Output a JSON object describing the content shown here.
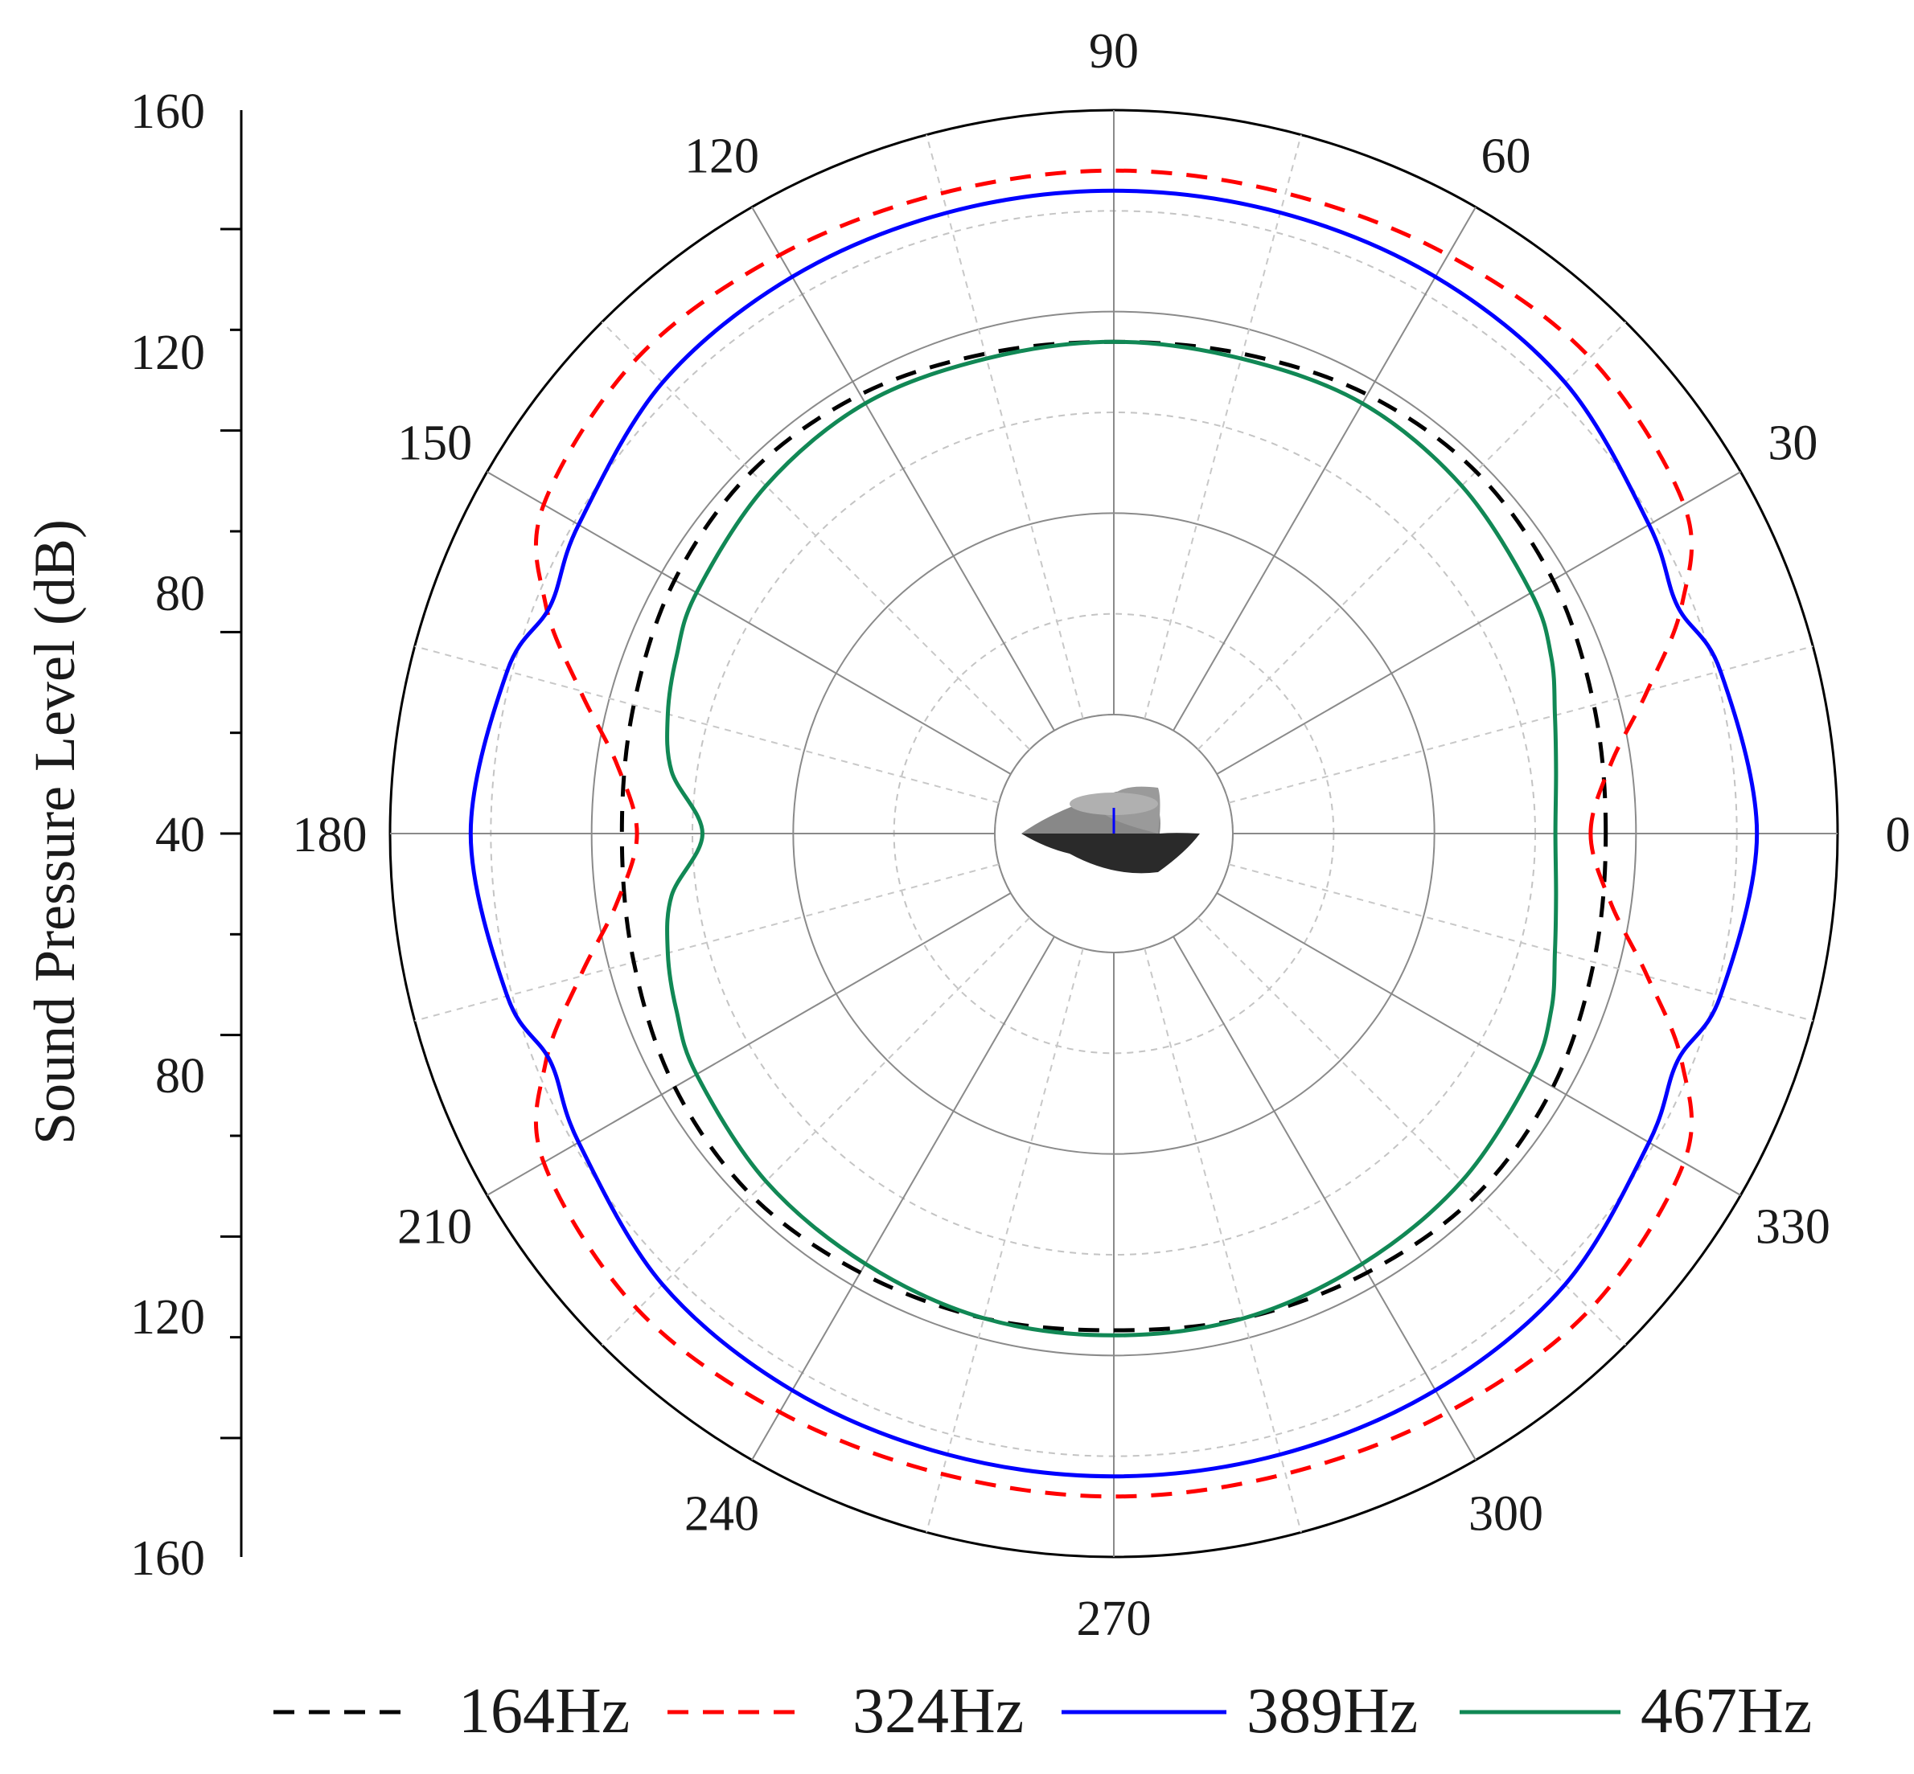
{
  "chart_data": {
    "type": "polar-line",
    "title": "",
    "ylabel": "Sound Pressure Level (dB)",
    "radial_range": [
      40,
      160
    ],
    "radial_ticks": [
      40,
      80,
      120,
      160
    ],
    "radial_minor_step": 20,
    "angle_ticks": [
      0,
      30,
      60,
      90,
      120,
      150,
      180,
      210,
      240,
      270,
      300,
      330
    ],
    "angle_minor_step": 15,
    "angle_unit": "degrees",
    "grid": true,
    "legend_position": "bottom",
    "left_axis_labels": [
      "160",
      "120",
      "80",
      "40",
      "80",
      "120",
      "160"
    ],
    "series": [
      {
        "name": "164Hz",
        "color": "#000000",
        "dash": "dashed",
        "angles": [
          0,
          15,
          30,
          45,
          60,
          75,
          90,
          105,
          120,
          135,
          150,
          165,
          180,
          195,
          210,
          225,
          240,
          255,
          270,
          285,
          300,
          315,
          330,
          345
        ],
        "values": [
          114,
          115,
          117,
          118,
          117,
          115,
          114,
          115,
          117,
          118,
          117,
          115,
          114,
          115,
          117,
          118,
          117,
          116,
          115,
          116,
          117,
          118,
          117,
          115
        ]
      },
      {
        "name": "324Hz",
        "color": "#ff0000",
        "dash": "dashed",
        "angles": [
          0,
          8,
          15,
          22,
          30,
          45,
          60,
          75,
          90,
          105,
          120,
          135,
          150,
          158,
          165,
          172,
          180,
          188,
          195,
          202,
          210,
          225,
          240,
          255,
          270,
          285,
          300,
          315,
          330,
          338,
          345,
          352
        ],
        "values": [
          111,
          116,
          126,
          138,
          147,
          150,
          149,
          148,
          148,
          148,
          149,
          150,
          147,
          138,
          126,
          116,
          111,
          116,
          126,
          138,
          147,
          150,
          149,
          148,
          148,
          148,
          149,
          150,
          147,
          138,
          126,
          116
        ]
      },
      {
        "name": "389Hz",
        "color": "#0000ff",
        "dash": "solid",
        "angles": [
          0,
          15,
          22,
          30,
          45,
          60,
          75,
          90,
          105,
          120,
          135,
          150,
          158,
          165,
          180,
          195,
          202,
          210,
          225,
          240,
          255,
          270,
          285,
          300,
          315,
          330,
          338,
          345
        ],
        "values": [
          144,
          141,
          137,
          139,
          143,
          144,
          144,
          144,
          144,
          144,
          143,
          139,
          137,
          141,
          144,
          141,
          137,
          139,
          143,
          144,
          144,
          144,
          144,
          144,
          143,
          139,
          137,
          141
        ]
      },
      {
        "name": "467Hz",
        "color": "#118855",
        "dash": "solid",
        "angles": [
          0,
          8,
          15,
          22,
          30,
          45,
          60,
          75,
          90,
          105,
          120,
          135,
          150,
          158,
          165,
          172,
          180,
          188,
          195,
          202,
          210,
          225,
          240,
          255,
          270,
          285,
          300,
          315,
          330,
          338,
          345,
          352
        ],
        "values": [
          104,
          105,
          107,
          110,
          112,
          114,
          115,
          114,
          114,
          114,
          115,
          114,
          112,
          110,
          108,
          105,
          98,
          105,
          108,
          110,
          112,
          114,
          115,
          116,
          116,
          116,
          115,
          114,
          112,
          110,
          107,
          105
        ]
      }
    ]
  }
}
